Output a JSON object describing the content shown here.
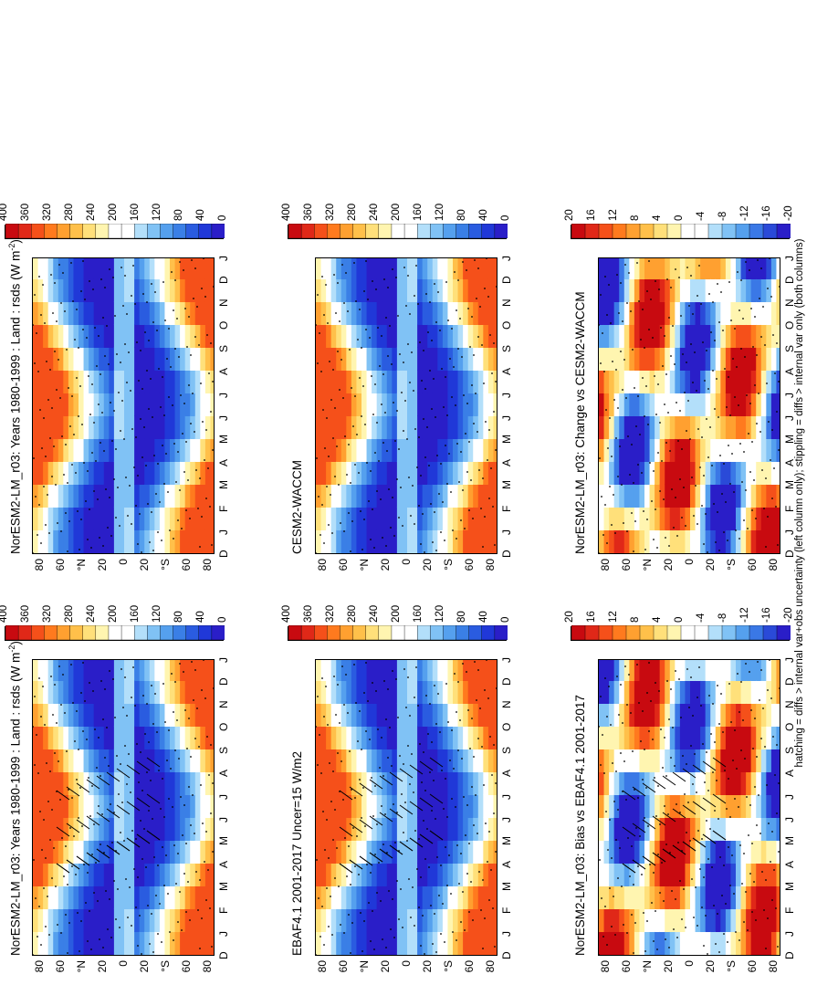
{
  "footnote": "hatching = diffs > internal var+obs uncertainty (left column only); stippling = diffs > internal var only (both columns)",
  "colormaps": {
    "abs": [
      "#2a1ec8",
      "#2038d8",
      "#2a5ce0",
      "#3a7fe6",
      "#55a0ee",
      "#80c2f5",
      "#b3dffa",
      "#ffffff",
      "#ffffff",
      "#fff5b0",
      "#ffe07a",
      "#ffc04a",
      "#ffa030",
      "#ff7a1e",
      "#f5501a",
      "#e02818",
      "#c80a10"
    ],
    "diff": [
      "#2a1ec8",
      "#2a4ad8",
      "#3a78e6",
      "#55a0ee",
      "#80c2f5",
      "#b3dffa",
      "#ffffff",
      "#ffffff",
      "#fff5b0",
      "#ffe07a",
      "#ffc04a",
      "#ffa030",
      "#ff7a1e",
      "#f5501a",
      "#e02818",
      "#c80a10"
    ]
  },
  "chart_data": [
    {
      "type": "heatmap",
      "title": "NorESM2-LM_r03: Years 1980-1999 : Land : rsds (W m",
      "title_sup": "-2",
      "title_end": ")",
      "x": [
        "D",
        "J",
        "F",
        "M",
        "A",
        "M",
        "J",
        "J",
        "A",
        "S",
        "O",
        "N",
        "D",
        "J"
      ],
      "y_ticks": [
        "80",
        "60",
        "°N",
        "20",
        "0",
        "20",
        "°S",
        "60",
        "80"
      ],
      "cbar_ticks": [
        "400",
        "360",
        "320",
        "280",
        "240",
        "200",
        "160",
        "120",
        "80",
        "40",
        "0"
      ],
      "scale": "abs",
      "hatching": true
    },
    {
      "type": "heatmap",
      "title": "NorESM2-LM_r03: Years 1980-1999 : Land : rsds (W m",
      "title_sup": "-2",
      "title_end": ")",
      "x": [
        "D",
        "J",
        "F",
        "M",
        "A",
        "M",
        "J",
        "J",
        "A",
        "S",
        "O",
        "N",
        "D",
        "J"
      ],
      "y_ticks": [
        "80",
        "60",
        "°N",
        "20",
        "0",
        "20",
        "°S",
        "60",
        "80"
      ],
      "cbar_ticks": [
        "400",
        "360",
        "320",
        "280",
        "240",
        "200",
        "160",
        "120",
        "80",
        "40",
        "0"
      ],
      "scale": "abs",
      "hatching": false
    },
    {
      "type": "heatmap",
      "title": "EBAF4.1 2001-2017 Uncer=15 W/m2",
      "title_sup": "",
      "title_end": "",
      "x": [
        "D",
        "J",
        "F",
        "M",
        "A",
        "M",
        "J",
        "J",
        "A",
        "S",
        "O",
        "N",
        "D",
        "J"
      ],
      "y_ticks": [
        "80",
        "60",
        "°N",
        "20",
        "0",
        "20",
        "°S",
        "60",
        "80"
      ],
      "cbar_ticks": [
        "400",
        "360",
        "320",
        "280",
        "240",
        "200",
        "160",
        "120",
        "80",
        "40",
        "0"
      ],
      "scale": "abs",
      "hatching": true
    },
    {
      "type": "heatmap",
      "title": "CESM2-WACCM",
      "title_sup": "",
      "title_end": "",
      "x": [
        "D",
        "J",
        "F",
        "M",
        "A",
        "M",
        "J",
        "J",
        "A",
        "S",
        "O",
        "N",
        "D",
        "J"
      ],
      "y_ticks": [
        "80",
        "60",
        "°N",
        "20",
        "0",
        "20",
        "°S",
        "60",
        "80"
      ],
      "cbar_ticks": [
        "400",
        "360",
        "320",
        "280",
        "240",
        "200",
        "160",
        "120",
        "80",
        "40",
        "0"
      ],
      "scale": "abs",
      "hatching": false
    },
    {
      "type": "heatmap",
      "title": "NorESM2-LM_r03: Bias vs EBAF4.1 2001-2017",
      "title_sup": "",
      "title_end": "",
      "x": [
        "D",
        "J",
        "F",
        "M",
        "A",
        "M",
        "J",
        "J",
        "A",
        "S",
        "O",
        "N",
        "D",
        "J"
      ],
      "y_ticks": [
        "80",
        "60",
        "°N",
        "20",
        "0",
        "20",
        "°S",
        "60",
        "80"
      ],
      "cbar_ticks": [
        "20",
        "16",
        "12",
        "8",
        "4",
        "0",
        "-4",
        "-8",
        "-12",
        "-16",
        "-20"
      ],
      "scale": "diff",
      "hatching": true
    },
    {
      "type": "heatmap",
      "title": "NorESM2-LM_r03: Change vs CESM2-WACCM",
      "title_sup": "",
      "title_end": "",
      "x": [
        "D",
        "J",
        "F",
        "M",
        "A",
        "M",
        "J",
        "J",
        "A",
        "S",
        "O",
        "N",
        "D",
        "J"
      ],
      "y_ticks": [
        "80",
        "60",
        "°N",
        "20",
        "0",
        "20",
        "°S",
        "60",
        "80"
      ],
      "cbar_ticks": [
        "20",
        "16",
        "12",
        "8",
        "4",
        "0",
        "-4",
        "-8",
        "-12",
        "-16",
        "-20"
      ],
      "scale": "diff",
      "hatching": false
    }
  ]
}
